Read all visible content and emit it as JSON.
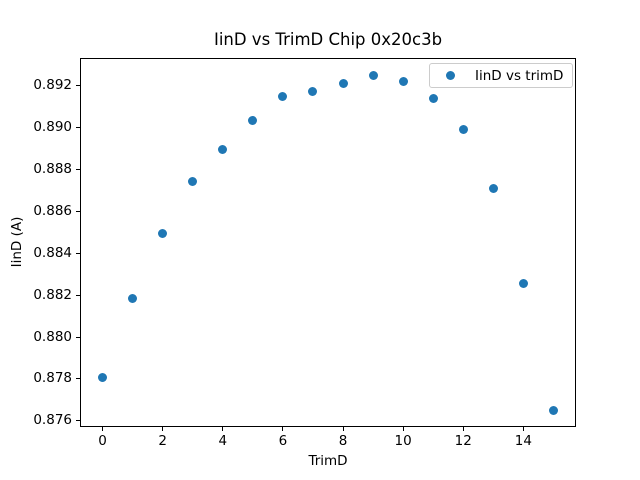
{
  "chart_data": {
    "type": "scatter",
    "title": "IinD vs TrimD Chip 0x20c3b",
    "xlabel": "TrimD",
    "ylabel": "IinD (A)",
    "legend": {
      "label": "IinD vs trimD",
      "position": "upper right"
    },
    "marker_color": "#1f77b4",
    "x": [
      0,
      1,
      2,
      3,
      4,
      5,
      6,
      7,
      8,
      9,
      10,
      11,
      12,
      13,
      14,
      15
    ],
    "y": [
      0.8781,
      0.88185,
      0.88495,
      0.88745,
      0.88895,
      0.89035,
      0.8915,
      0.89175,
      0.8921,
      0.8925,
      0.8922,
      0.8914,
      0.8899,
      0.8871,
      0.88255,
      0.8765
    ],
    "xlim": [
      -0.75,
      15.75
    ],
    "ylim": [
      0.8757,
      0.89333
    ],
    "xticks": [
      0,
      2,
      4,
      6,
      8,
      10,
      12,
      14
    ],
    "yticks": [
      0.876,
      0.878,
      0.88,
      0.882,
      0.884,
      0.886,
      0.888,
      0.89,
      0.892
    ],
    "grid": false,
    "background": "#ffffff"
  }
}
